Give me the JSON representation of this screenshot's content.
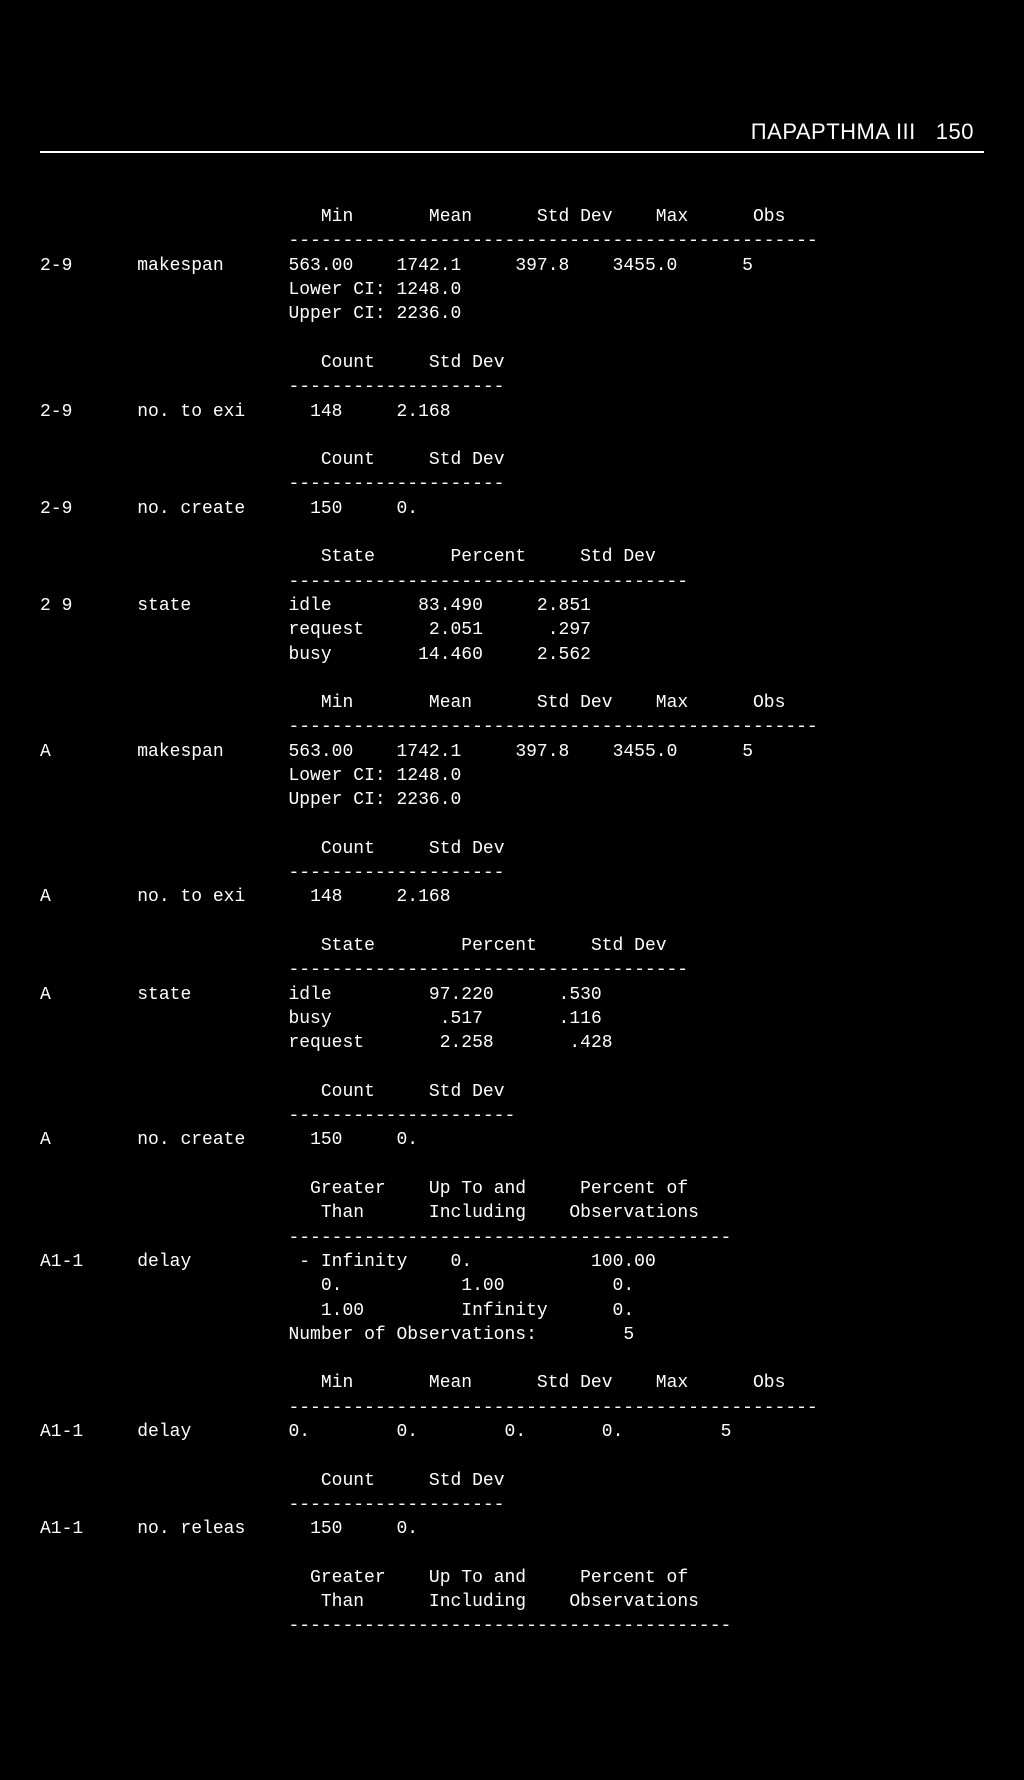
{
  "header": {
    "title": "ΠΑΡΑΡΤΗΜΑ III",
    "page": "150"
  },
  "c": {
    "min": "Min",
    "mean": "Mean",
    "stddev": "Std Dev",
    "max": "Max",
    "obs": "Obs",
    "count": "Count",
    "state": "State",
    "percent": "Percent",
    "greater": "Greater",
    "than": "Than",
    "upto": "Up To and",
    "including": "Including",
    "pctof": "Percent of",
    "observ": "Observations",
    "lowerci": "Lower CI:",
    "upperci": "Upper CI:",
    "numobs": "Number of Observations:"
  },
  "s1": {
    "id": "2-9",
    "lbl": "makespan",
    "v1": "563.00",
    "v2": "1742.1",
    "v3": "397.8",
    "v4": "3455.0",
    "v5": "5",
    "lci": "1248.0",
    "uci": "2236.0"
  },
  "s2": {
    "id": "2-9",
    "lbl": "no. to exi",
    "v1": "148",
    "v2": "2.168"
  },
  "s3": {
    "id": "2-9",
    "lbl": "no. create",
    "v1": "150",
    "v2": "0."
  },
  "s4": {
    "id": "2 9",
    "lbl": "state",
    "r1a": "idle",
    "r1b": "83.490",
    "r1c": "2.851",
    "r2a": "request",
    "r2b": "2.051",
    "r2c": ".297",
    "r3a": "busy",
    "r3b": "14.460",
    "r3c": "2.562"
  },
  "s5": {
    "id": "A",
    "lbl": "makespan",
    "v1": "563.00",
    "v2": "1742.1",
    "v3": "397.8",
    "v4": "3455.0",
    "v5": "5",
    "lci": "1248.0",
    "uci": "2236.0"
  },
  "s6": {
    "id": "A",
    "lbl": "no. to exi",
    "v1": "148",
    "v2": "2.168"
  },
  "s7": {
    "id": "A",
    "lbl": "state",
    "r1a": "idle",
    "r1b": "97.220",
    "r1c": ".530",
    "r2a": "busy",
    "r2b": ".517",
    "r2c": ".116",
    "r3a": "request",
    "r3b": "2.258",
    "r3c": ".428"
  },
  "s8": {
    "id": "A",
    "lbl": "no. create",
    "v1": "150",
    "v2": "0."
  },
  "s9": {
    "id": "A1-1",
    "lbl": "delay",
    "r1a": "- Infinity",
    "r1b": "0.",
    "r1c": "100.00",
    "r2a": "0.",
    "r2b": "1.00",
    "r2c": "0.",
    "r3a": "1.00",
    "r3b": "Infinity",
    "r3c": "0.",
    "nobs": "5"
  },
  "s10": {
    "id": "A1-1",
    "lbl": "delay",
    "v1": "0.",
    "v2": "0.",
    "v3": "0.",
    "v4": "0.",
    "v5": "5"
  },
  "s11": {
    "id": "A1-1",
    "lbl": "no. releas",
    "v1": "150",
    "v2": "0."
  }
}
